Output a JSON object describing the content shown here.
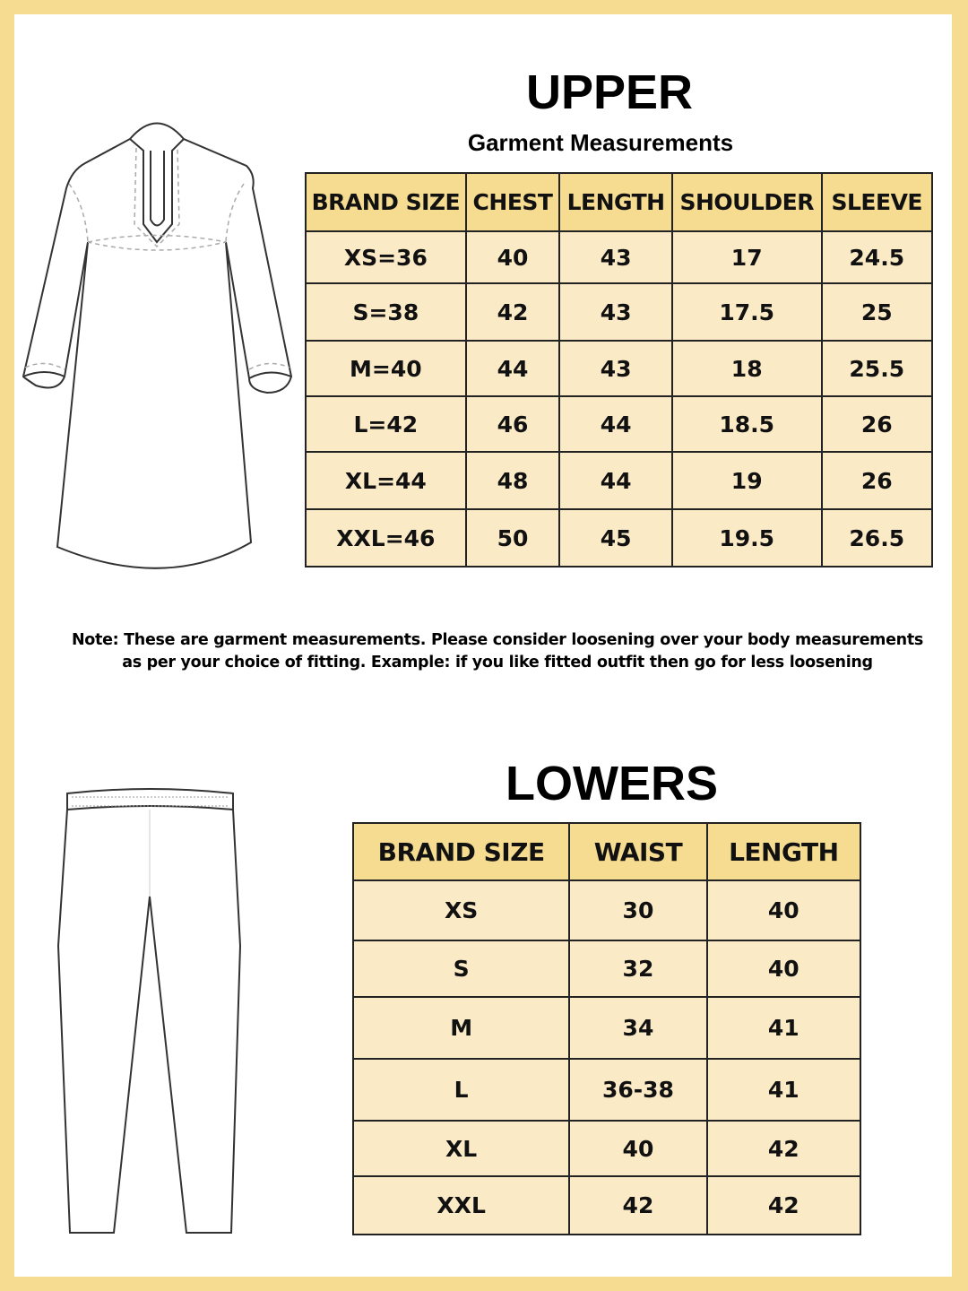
{
  "colors": {
    "frame": "#f5dc91",
    "header": "#f5dc90",
    "cell": "#fbeac6"
  },
  "upper": {
    "title": "UPPER",
    "subtitle": "Garment Measurements",
    "headers": [
      "BRAND SIZE",
      "CHEST",
      "LENGTH",
      "SHOULDER",
      "SLEEVE"
    ],
    "rows": [
      [
        "XS=36",
        "40",
        "43",
        "17",
        "24.5"
      ],
      [
        "S=38",
        "42",
        "43",
        "17.5",
        "25"
      ],
      [
        "M=40",
        "44",
        "43",
        "18",
        "25.5"
      ],
      [
        "L=42",
        "46",
        "44",
        "18.5",
        "26"
      ],
      [
        "XL=44",
        "48",
        "44",
        "19",
        "26"
      ],
      [
        "XXL=46",
        "50",
        "45",
        "19.5",
        "26.5"
      ]
    ],
    "illustration": "kurta-illustration"
  },
  "note": {
    "line1": "Note: These are garment measurements. Please consider loosening over your body measurements",
    "line2": "as per your choice of fitting. Example: if you like fitted outfit then go for less loosening"
  },
  "lowers": {
    "title": "LOWERS",
    "headers": [
      "BRAND SIZE",
      "WAIST",
      "LENGTH"
    ],
    "rows": [
      [
        "XS",
        "30",
        "40"
      ],
      [
        "S",
        "32",
        "40"
      ],
      [
        "M",
        "34",
        "41"
      ],
      [
        "L",
        "36-38",
        "41"
      ],
      [
        "XL",
        "40",
        "42"
      ],
      [
        "XXL",
        "42",
        "42"
      ]
    ],
    "illustration": "pants-illustration"
  }
}
